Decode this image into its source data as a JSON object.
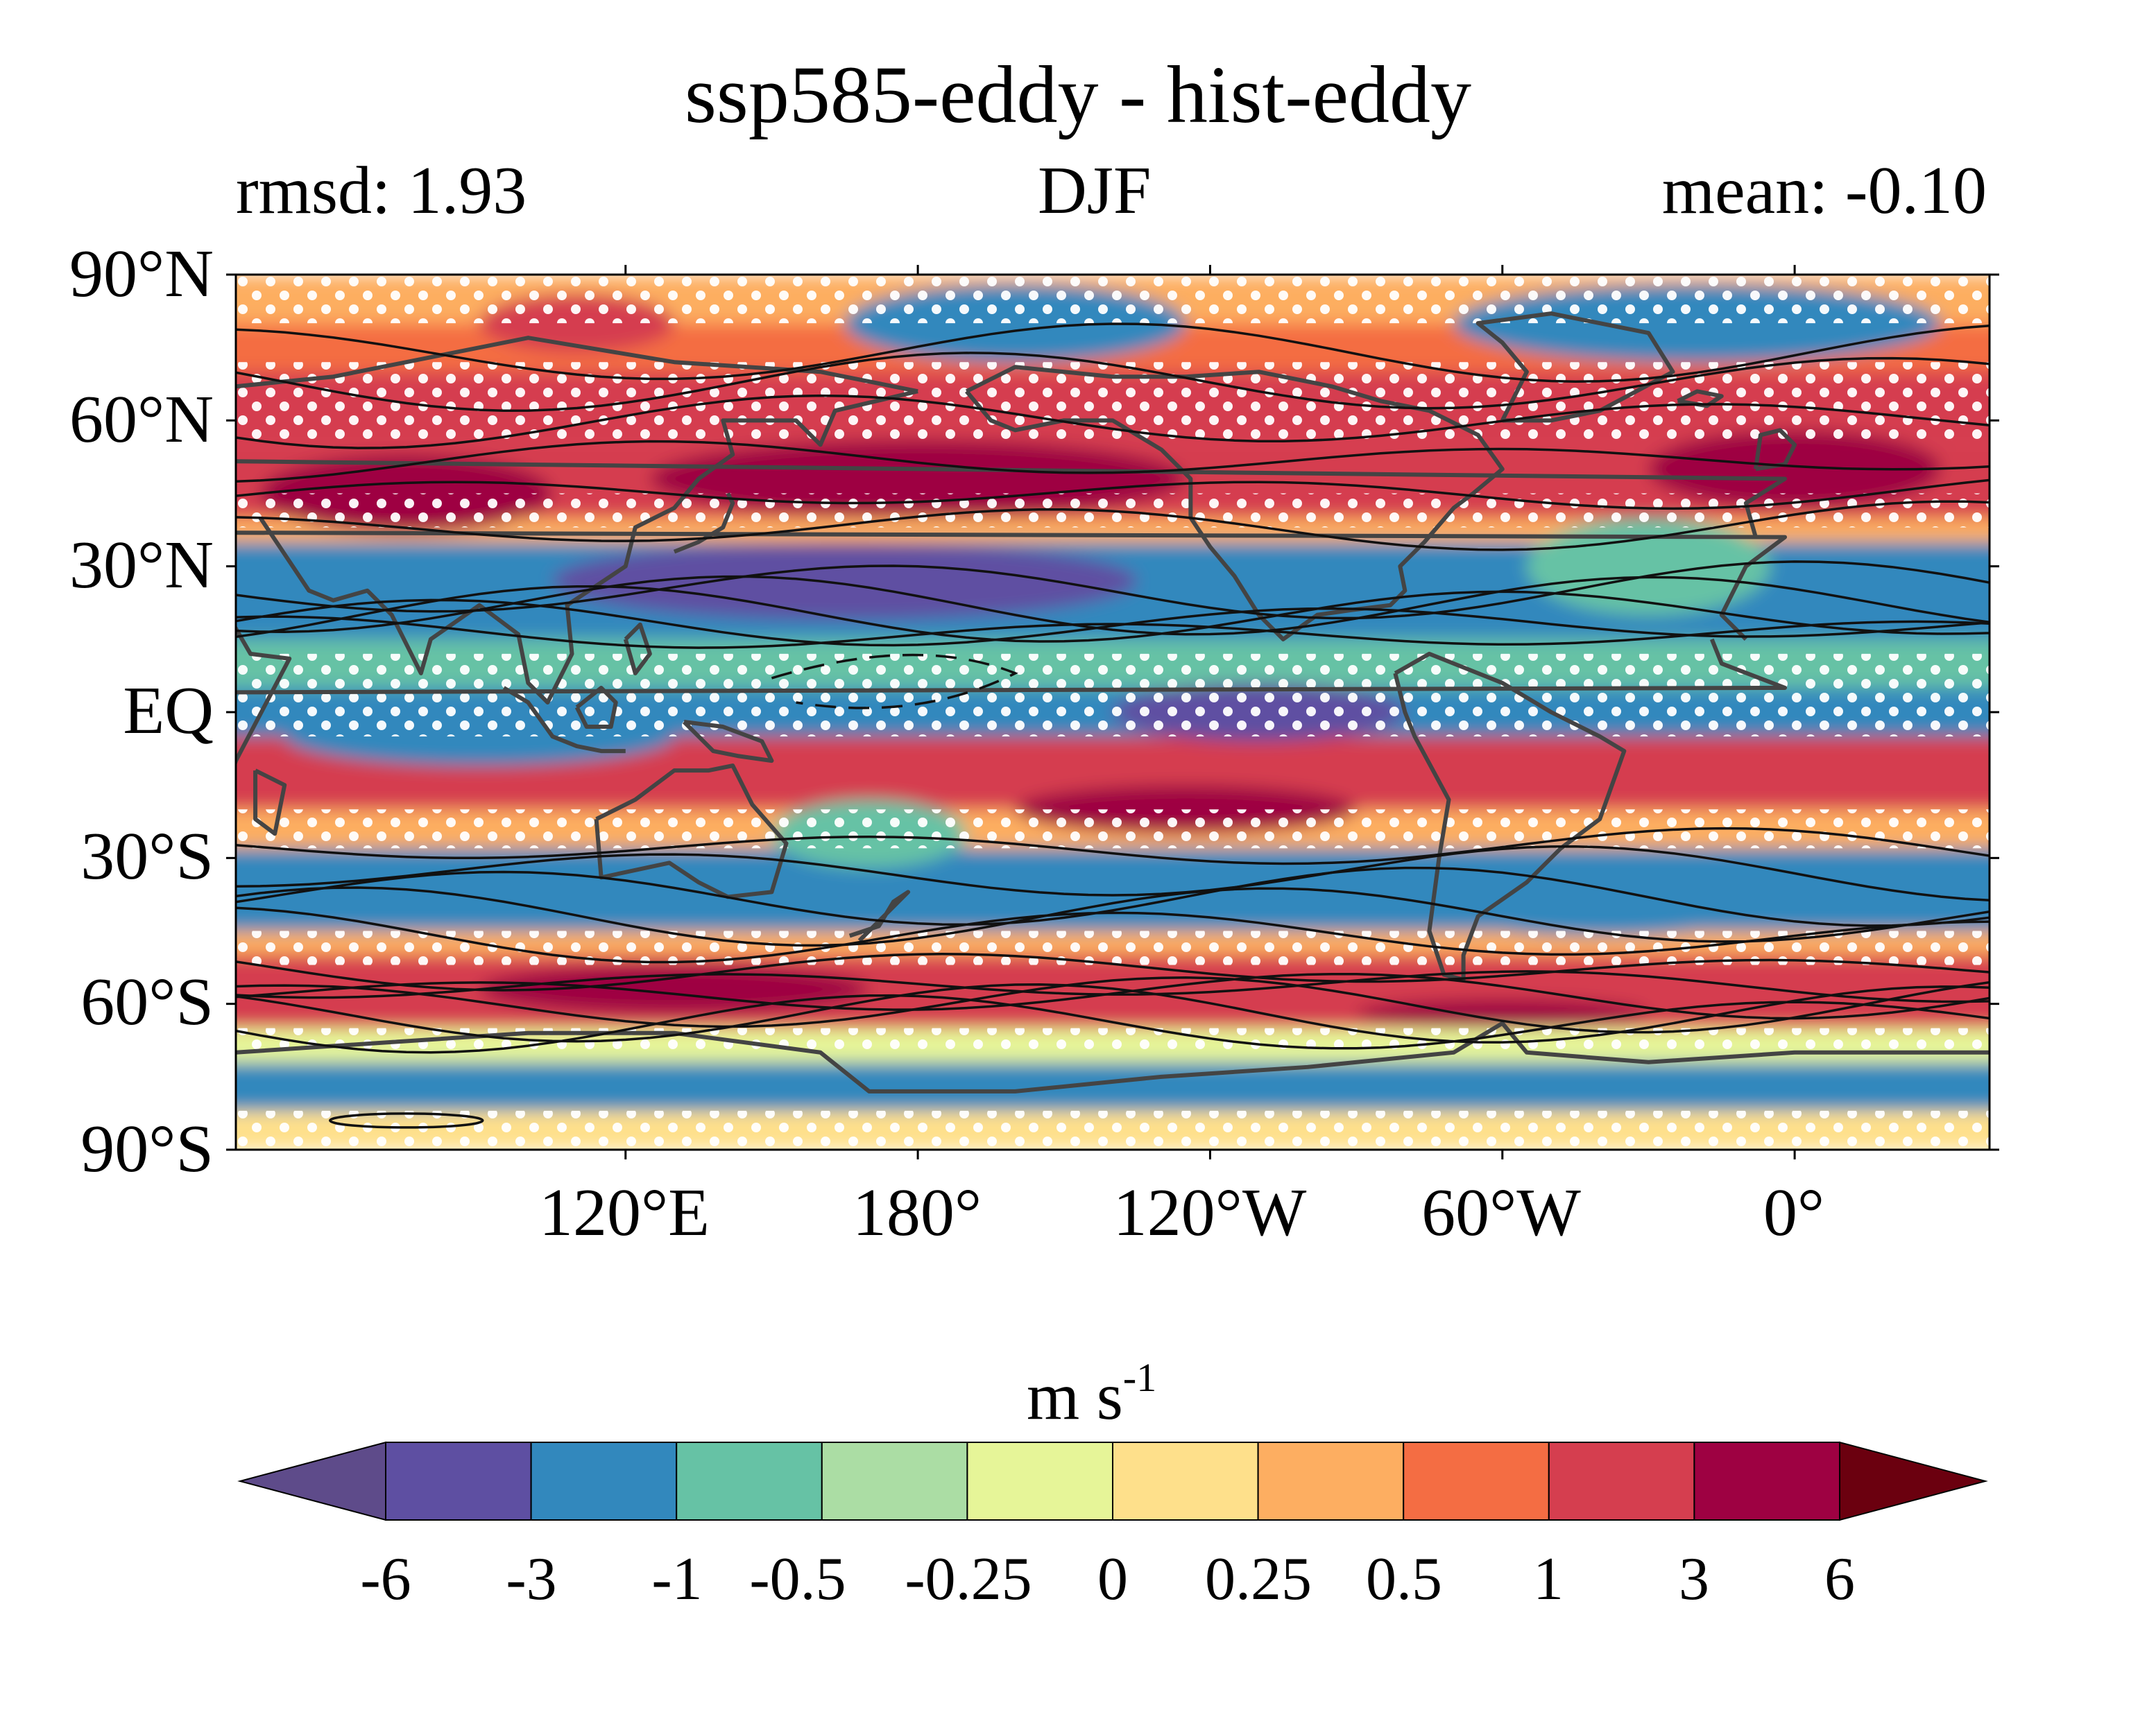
{
  "title": "ssp585-eddy - hist-eddy",
  "subtitles": {
    "left": "rmsd: 1.93",
    "center": "DJF",
    "right": "mean: -0.10"
  },
  "axes": {
    "y_ticks": [
      "90°N",
      "60°N",
      "30°N",
      "EQ",
      "30°S",
      "60°S",
      "90°S"
    ],
    "x_ticks": [
      "120°E",
      "180°",
      "120°W",
      "60°W",
      "0°"
    ],
    "lon_range": [
      40,
      400
    ],
    "lat_range": [
      -90,
      90
    ]
  },
  "colorbar": {
    "units_base": "m s",
    "units_exp": "-1",
    "tick_labels": [
      "-6",
      "-3",
      "-1",
      "-0.5",
      "-0.25",
      "0",
      "0.25",
      "0.5",
      "1",
      "3",
      "6"
    ],
    "colors": [
      "#5e4fa2",
      "#3288bd",
      "#66c2a5",
      "#abdda4",
      "#e6f598",
      "#fee08b",
      "#fdae61",
      "#f46d43",
      "#d53e4f",
      "#9e0142"
    ],
    "under_color": "#5e4b8a",
    "over_color": "#6b000f",
    "extend": "both"
  },
  "map_bands": [
    {
      "lat": [
        80,
        90
      ],
      "color": "#fdae61"
    },
    {
      "lat": [
        70,
        80
      ],
      "color": "#f46d43"
    },
    {
      "lat": [
        55,
        70
      ],
      "color": "#d53e4f"
    },
    {
      "lat": [
        40,
        55
      ],
      "color": "#d53e4f"
    },
    {
      "lat": [
        35,
        40
      ],
      "color": "#fdae61"
    },
    {
      "lat": [
        15,
        35
      ],
      "color": "#3288bd"
    },
    {
      "lat": [
        5,
        15
      ],
      "color": "#66c2a5"
    },
    {
      "lat": [
        -5,
        5
      ],
      "color": "#3288bd"
    },
    {
      "lat": [
        -20,
        -5
      ],
      "color": "#d53e4f"
    },
    {
      "lat": [
        -28,
        -20
      ],
      "color": "#fdae61"
    },
    {
      "lat": [
        -45,
        -28
      ],
      "color": "#3288bd"
    },
    {
      "lat": [
        -50,
        -45
      ],
      "color": "#fdae61"
    },
    {
      "lat": [
        -65,
        -50
      ],
      "color": "#d53e4f"
    },
    {
      "lat": [
        -72,
        -65
      ],
      "color": "#e6f598"
    },
    {
      "lat": [
        -82,
        -72
      ],
      "color": "#3288bd"
    },
    {
      "lat": [
        -90,
        -82
      ],
      "color": "#fee08b"
    }
  ],
  "map_blobs": [
    {
      "lon": 180,
      "lat": 48,
      "rlon": 55,
      "rlat": 8,
      "color": "#9e0142"
    },
    {
      "lon": 165,
      "lat": 27,
      "rlon": 60,
      "rlat": 8,
      "color": "#5e4fa2"
    },
    {
      "lon": 250,
      "lat": 0,
      "rlon": 30,
      "rlat": 6,
      "color": "#5e4fa2"
    },
    {
      "lon": 235,
      "lat": -20,
      "rlon": 35,
      "rlat": 5,
      "color": "#9e0142"
    },
    {
      "lon": 130,
      "lat": -57,
      "rlon": 40,
      "rlat": 5,
      "color": "#9e0142"
    },
    {
      "lon": 300,
      "lat": -62,
      "rlon": 30,
      "rlat": 3,
      "color": "#9e0142"
    },
    {
      "lon": 340,
      "lat": 80,
      "rlon": 50,
      "rlat": 8,
      "color": "#3288bd"
    },
    {
      "lon": 200,
      "lat": 80,
      "rlon": 35,
      "rlat": 8,
      "color": "#3288bd"
    },
    {
      "lon": 110,
      "lat": 80,
      "rlon": 20,
      "rlat": 6,
      "color": "#d53e4f"
    },
    {
      "lon": 360,
      "lat": 50,
      "rlon": 30,
      "rlat": 8,
      "color": "#9e0142"
    },
    {
      "lon": 330,
      "lat": 30,
      "rlon": 25,
      "rlat": 10,
      "color": "#66c2a5"
    },
    {
      "lon": 75,
      "lat": 45,
      "rlon": 30,
      "rlat": 8,
      "color": "#9e0142"
    },
    {
      "lon": 170,
      "lat": -25,
      "rlon": 20,
      "rlat": 7,
      "color": "#66c2a5"
    },
    {
      "lon": 320,
      "lat": -42,
      "rlon": 30,
      "rlat": 4,
      "color": "#3288bd"
    },
    {
      "lon": 90,
      "lat": -5,
      "rlon": 40,
      "rlat": 6,
      "color": "#3288bd"
    }
  ],
  "contour_lats": [
    74,
    68,
    60,
    52,
    45,
    38,
    25,
    22,
    20,
    18,
    16,
    -28,
    -33,
    -38,
    -42,
    -46,
    -53,
    -56,
    -58,
    -60,
    -62,
    -64
  ]
}
